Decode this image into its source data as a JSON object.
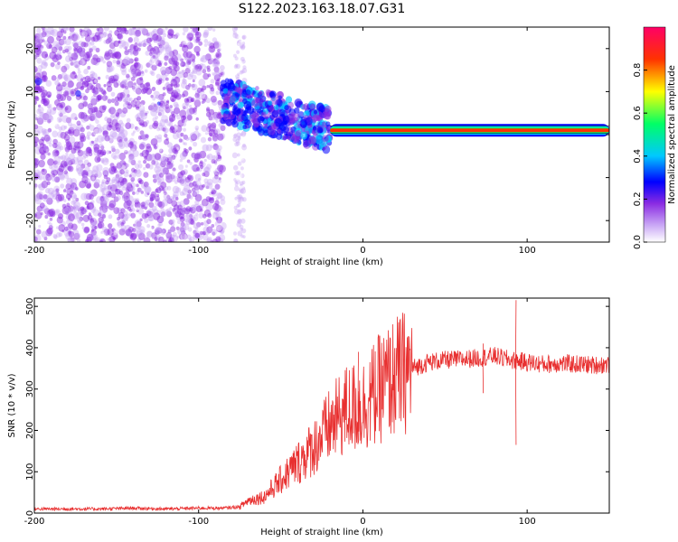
{
  "title": "S122.2023.163.18.07.G31",
  "chart_data": [
    {
      "type": "heatmap",
      "xlabel": "Height of straight line (km)",
      "ylabel": "Frequency (Hz)",
      "xlim": [
        -200,
        150
      ],
      "ylim": [
        -25,
        25
      ],
      "x_ticks": [
        -200,
        -100,
        0,
        100
      ],
      "y_ticks": [
        -20,
        -10,
        0,
        10,
        20
      ],
      "colorbar": {
        "label": "Normalized spectral amplitude",
        "range": [
          0,
          1
        ],
        "ticks": [
          0.0,
          0.2,
          0.4,
          0.6,
          0.8
        ],
        "tick_labels": [
          "0.0",
          "0.2",
          "0.4",
          "0.6",
          "0.8"
        ],
        "colors": [
          "#ffffff",
          "#c9a6f5",
          "#8a2be2",
          "#0000ff",
          "#00c8ff",
          "#00ff66",
          "#ffff00",
          "#ff3300",
          "#ff0066"
        ]
      },
      "features": {
        "noise_region_x": [
          -200,
          -85
        ],
        "transition_x": [
          -85,
          -20
        ],
        "carrier_line_frequency_hz": 1,
        "carrier_line_x": [
          -20,
          150
        ]
      }
    },
    {
      "type": "line",
      "xlabel": "Height of straight line (km)",
      "ylabel": "SNR (10 * v/v)",
      "xlim": [
        -200,
        150
      ],
      "ylim": [
        0,
        520
      ],
      "x_ticks": [
        -200,
        -100,
        0,
        100
      ],
      "y_ticks": [
        0,
        100,
        200,
        300,
        400,
        500
      ],
      "color": "#e83030",
      "series": [
        {
          "x": [
            -200,
            -180,
            -160,
            -140,
            -120,
            -100,
            -85,
            -75,
            -70,
            -60,
            -50,
            -40,
            -30,
            -20,
            -10,
            0,
            10,
            20,
            30,
            40,
            50,
            60,
            70,
            80,
            90,
            100,
            110,
            120,
            130,
            140,
            150
          ],
          "values": [
            10,
            10,
            10,
            12,
            10,
            12,
            12,
            15,
            30,
            40,
            80,
            120,
            160,
            210,
            250,
            260,
            300,
            330,
            350,
            365,
            370,
            372,
            375,
            380,
            370,
            365,
            360,
            362,
            360,
            358,
            360
          ]
        }
      ],
      "spikes": [
        {
          "x": 93,
          "values": [
            515,
            165
          ]
        },
        {
          "x": 73,
          "values": [
            410,
            290
          ]
        },
        {
          "x": -3,
          "values": [
            390,
            170
          ]
        }
      ]
    }
  ]
}
